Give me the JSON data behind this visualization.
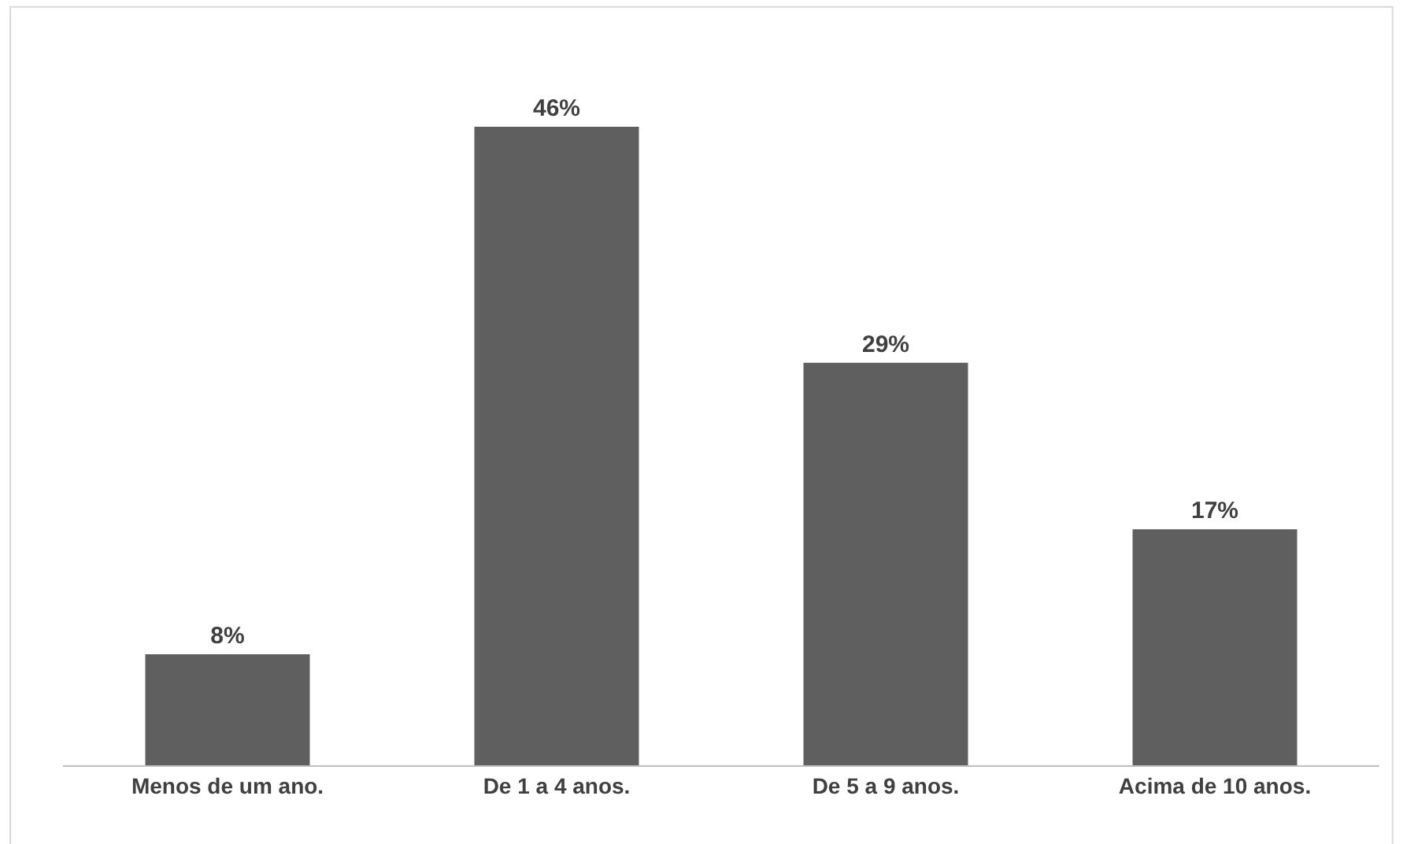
{
  "chart_data": {
    "type": "bar",
    "categories": [
      "Menos de um ano.",
      "De 1 a 4 anos.",
      "De 5 a 9 anos.",
      "Acima de 10 anos."
    ],
    "values": [
      8,
      46,
      29,
      17
    ],
    "value_labels": [
      "8%",
      "46%",
      "29%",
      "17%"
    ],
    "color": "#5f5f5f",
    "legend": false
  }
}
